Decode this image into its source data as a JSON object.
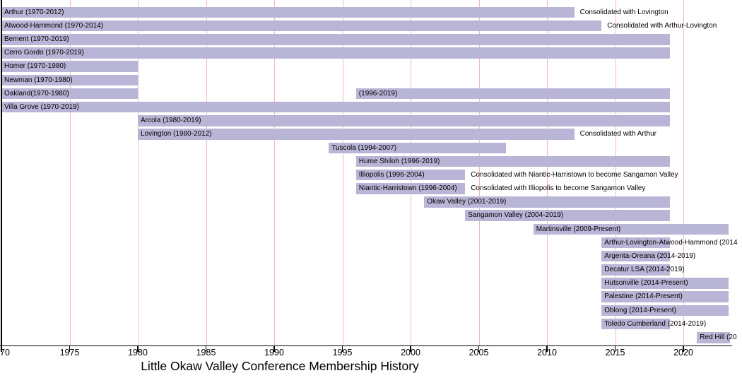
{
  "colors": {
    "bar_fill": "#b9b5d6",
    "gridline": "#f4b6c3",
    "axis": "#000000",
    "background": "#ffffff",
    "text": "#000000"
  },
  "chart_data": {
    "type": "bar",
    "subtype": "gantt-timeline",
    "title": "Little Okaw Valley Conference Membership History",
    "xlabel": "Little Okaw Valley Conference Membership History",
    "ylabel": "",
    "grid": "vertical pink gridlines at 5-year ticks",
    "x_axis": {
      "range": [
        1970,
        2023.5
      ],
      "ticks": [
        {
          "year": 1970,
          "label": "70",
          "anchor": "left"
        },
        {
          "year": 1975,
          "label": "1975"
        },
        {
          "year": 1980,
          "label": "1980"
        },
        {
          "year": 1985,
          "label": "1985"
        },
        {
          "year": 1990,
          "label": "1990"
        },
        {
          "year": 1995,
          "label": "1995"
        },
        {
          "year": 2000,
          "label": "2000"
        },
        {
          "year": 2005,
          "label": "2005"
        },
        {
          "year": 2010,
          "label": "2010"
        },
        {
          "year": 2015,
          "label": "2015"
        },
        {
          "year": 2020,
          "label": "2020"
        }
      ],
      "gridline_years": [
        1975,
        1980,
        1985,
        1990,
        1995,
        2000,
        2005,
        2010,
        2015,
        2020
      ]
    },
    "rows": [
      {
        "name": "Arthur",
        "segments": [
          {
            "start": 1970,
            "end": 2012,
            "label": "Arthur (1970-2012)"
          }
        ],
        "annotation": {
          "text": "Consolidated with Lovington"
        }
      },
      {
        "name": "Atwood-Hammond",
        "segments": [
          {
            "start": 1970,
            "end": 2014,
            "label": "Atwood-Hammond (1970-2014)"
          }
        ],
        "annotation": {
          "text": "Consolidated with Arthur-Lovington"
        }
      },
      {
        "name": "Bement",
        "segments": [
          {
            "start": 1970,
            "end": 2019,
            "label": "Bement (1970-2019)"
          }
        ]
      },
      {
        "name": "Cerro Gordo",
        "segments": [
          {
            "start": 1970,
            "end": 2019,
            "label": "Cerro Gordo (1970-2019)"
          }
        ]
      },
      {
        "name": "Homer",
        "segments": [
          {
            "start": 1970,
            "end": 1980,
            "label": "Homer (1970-1980)"
          }
        ]
      },
      {
        "name": "Newman",
        "segments": [
          {
            "start": 1970,
            "end": 1980,
            "label": "Newman (1970-1980)"
          }
        ]
      },
      {
        "name": "Oakland",
        "segments": [
          {
            "start": 1970,
            "end": 1980,
            "label": "Oakland(1970-1980)"
          },
          {
            "start": 1996,
            "end": 2019,
            "label": "(1996-2019)"
          }
        ]
      },
      {
        "name": "Villa Grove",
        "segments": [
          {
            "start": 1970,
            "end": 2019,
            "label": "Villa Grove (1970-2019)"
          }
        ]
      },
      {
        "name": "Arcola",
        "segments": [
          {
            "start": 1980,
            "end": 2019,
            "label": "Arcola (1980-2019)"
          }
        ]
      },
      {
        "name": "Lovington",
        "segments": [
          {
            "start": 1980,
            "end": 2012,
            "label": "Lovington (1980-2012)"
          }
        ],
        "annotation": {
          "text": "Consolidated with Arthur"
        }
      },
      {
        "name": "Tuscola",
        "segments": [
          {
            "start": 1994,
            "end": 2007,
            "label": "Tuscola (1994-2007)"
          }
        ]
      },
      {
        "name": "Hume Shiloh",
        "segments": [
          {
            "start": 1996,
            "end": 2019,
            "label": "Hume Shiloh (1996-2019)"
          }
        ]
      },
      {
        "name": "Illiopolis",
        "segments": [
          {
            "start": 1996,
            "end": 2004,
            "label": "Illiopolis (1996-2004)"
          }
        ],
        "annotation": {
          "text": "Consolidated with Niantic-Harristown to become Sangamon Valley"
        }
      },
      {
        "name": "Niantic-Harristown",
        "segments": [
          {
            "start": 1996,
            "end": 2004,
            "label": "Niantic-Harristown (1996-2004)"
          }
        ],
        "annotation": {
          "text": "Consolidated with Illiopolis to become Sangamon Valley"
        }
      },
      {
        "name": "Okaw Valley",
        "segments": [
          {
            "start": 2001,
            "end": 2019,
            "label": "Okaw Valley (2001-2019)"
          }
        ]
      },
      {
        "name": "Sangamon Valley",
        "segments": [
          {
            "start": 2004,
            "end": 2019,
            "label": "Sangamon Valley (2004-2019)"
          }
        ]
      },
      {
        "name": "Martinsville",
        "segments": [
          {
            "start": 2009,
            "end": 2023.3,
            "label": "Martinsville (2009-Present)"
          }
        ]
      },
      {
        "name": "Arthur-Lovington-Atwood-Hammond",
        "segments": [
          {
            "start": 2014,
            "end": 2019,
            "label": "Arthur-Lovington-Atwood-Hammond (2014",
            "label_clipped_at_right_edge": true
          }
        ]
      },
      {
        "name": "Argenta-Oreana",
        "segments": [
          {
            "start": 2014,
            "end": 2019,
            "label": "Argenta-Oreana (2014-2019)"
          }
        ]
      },
      {
        "name": "Decatur LSA",
        "segments": [
          {
            "start": 2014,
            "end": 2019,
            "label": "Decatur LSA (2014-2019)"
          }
        ]
      },
      {
        "name": "Hutsonville",
        "segments": [
          {
            "start": 2014,
            "end": 2023.3,
            "label": "Hutsonville (2014-Present)"
          }
        ]
      },
      {
        "name": "Palestine",
        "segments": [
          {
            "start": 2014,
            "end": 2023.3,
            "label": "Palestine (2014-Present)"
          }
        ]
      },
      {
        "name": "Oblong",
        "segments": [
          {
            "start": 2014,
            "end": 2023.3,
            "label": "Oblong (2014-Present)"
          }
        ]
      },
      {
        "name": "Toledo Cumberland",
        "segments": [
          {
            "start": 2014,
            "end": 2019,
            "label": "Toledo Cumberland (2014-2019)"
          }
        ]
      },
      {
        "name": "Red Hill",
        "segments": [
          {
            "start": 2021,
            "end": 2023.4,
            "label": "Red Hill (20",
            "label_clipped_at_right_edge": true
          }
        ]
      }
    ]
  }
}
